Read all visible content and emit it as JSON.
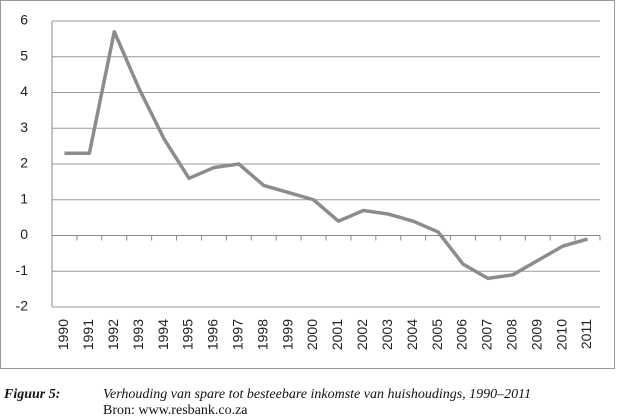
{
  "chart_data": {
    "type": "line",
    "categories": [
      "1990",
      "1991",
      "1992",
      "1993",
      "1994",
      "1995",
      "1996",
      "1997",
      "1998",
      "1999",
      "2000",
      "2001",
      "2002",
      "2003",
      "2004",
      "2005",
      "2006",
      "2007",
      "2008",
      "2009",
      "2010",
      "2011"
    ],
    "series": [
      {
        "color": "#8c8c8c",
        "values": [
          2.3,
          2.3,
          5.7,
          4.1,
          2.7,
          1.6,
          1.9,
          2.0,
          1.4,
          1.2,
          1.0,
          0.4,
          0.7,
          0.6,
          0.4,
          0.1,
          -0.8,
          -1.2,
          -1.1,
          -0.7,
          -0.3,
          -0.1
        ]
      }
    ],
    "ylim": [
      -2,
      6
    ],
    "yticks": [
      -2,
      -1,
      0,
      1,
      2,
      3,
      4,
      5,
      6
    ],
    "grid": true
  },
  "caption": {
    "label": "Figuur 5:",
    "text": "Verhouding van spare tot besteebare inkomste van huishoudings, 1990–2011",
    "source": "Bron: www.resbank.co.za"
  }
}
